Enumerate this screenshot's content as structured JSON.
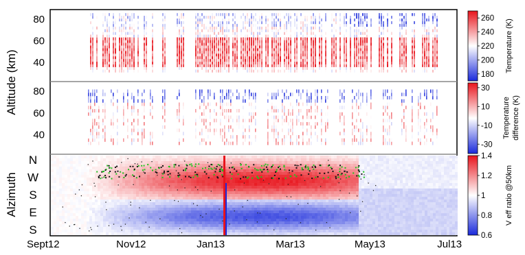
{
  "chart_data": [
    {
      "type": "heatmap",
      "panel": "temperature",
      "ylabel": "Altitude (km)",
      "yticks": [
        40,
        60,
        80
      ],
      "ylim": [
        22,
        87
      ],
      "colorbar": {
        "label": "Temperature (K)",
        "ticks": [
          180,
          200,
          220,
          240,
          260
        ],
        "range": [
          170,
          270
        ],
        "colors": [
          "#1a2adb",
          "#ffffff",
          "#e8141c"
        ]
      },
      "data_altitude_range": [
        30,
        85
      ],
      "warm_layer_altitude_range": [
        35,
        60
      ]
    },
    {
      "type": "heatmap",
      "panel": "temperature-difference",
      "yticks": [
        40,
        60,
        80
      ],
      "ylim": [
        22,
        87
      ],
      "colorbar": {
        "label_lines": [
          "Temperature",
          "difference (K)"
        ],
        "ticks": [
          30,
          10,
          -10,
          -30
        ],
        "range": [
          -40,
          35
        ],
        "colors": [
          "#1a2adb",
          "#ffffff",
          "#e8141c"
        ]
      },
      "data_altitude_range": [
        30,
        80
      ]
    },
    {
      "type": "heatmap",
      "panel": "azimuth",
      "ylabel": "Alzimuth",
      "yticks": [
        "N",
        "W",
        "S",
        "E",
        "S"
      ],
      "colorbar": {
        "label": "V eff ratio @50km",
        "ticks": [
          1.4,
          1.2,
          1.0,
          0.8,
          0.6
        ],
        "range": [
          0.6,
          1.4
        ],
        "colors": [
          "#1a2adb",
          "#ffffff",
          "#e8141c"
        ]
      }
    }
  ],
  "xaxis": {
    "ticks": [
      "Sept12",
      "Nov12",
      "Jan13",
      "Mar13",
      "May13",
      "Jul13"
    ]
  }
}
